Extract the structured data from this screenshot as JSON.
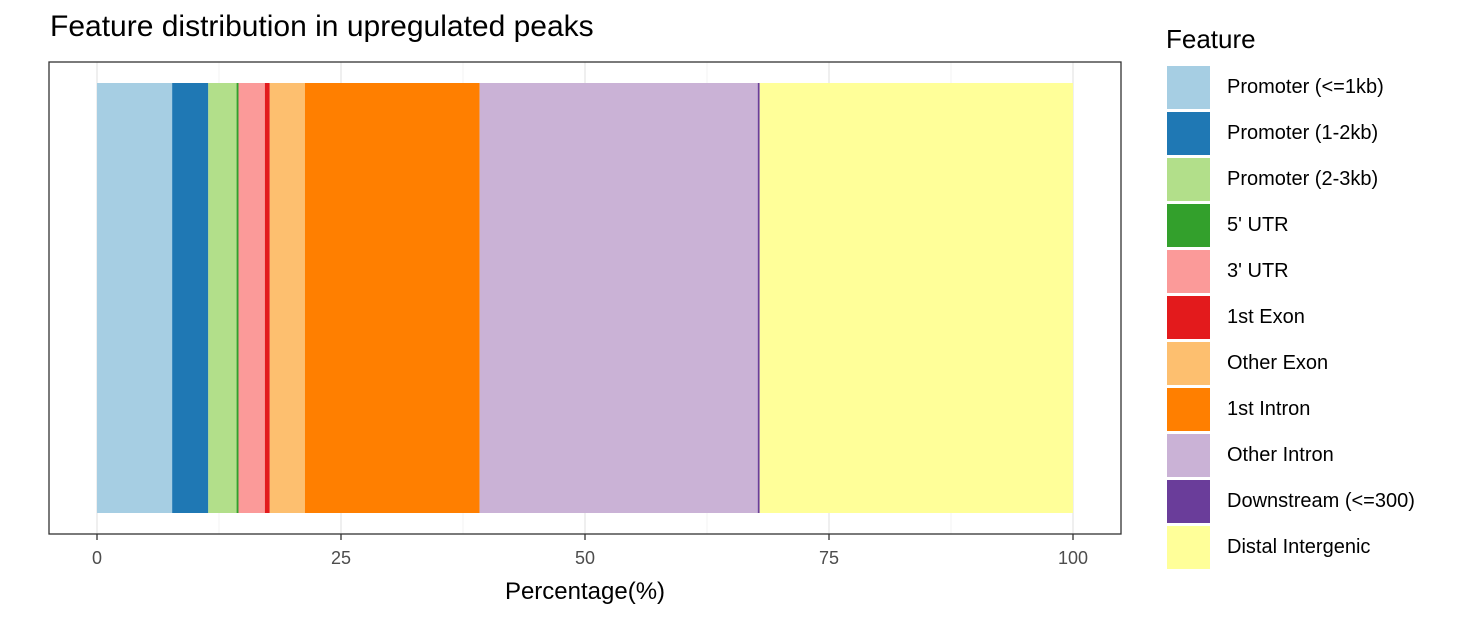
{
  "chart_data": {
    "type": "bar",
    "orientation": "horizontal",
    "stacked": true,
    "title": "Feature distribution in upregulated peaks",
    "xlabel": "Percentage(%)",
    "ylabel": "",
    "xlim": [
      0,
      100
    ],
    "x_ticks": [
      0,
      25,
      50,
      75,
      100
    ],
    "grid": true,
    "legend_title": "Feature",
    "legend_position": "right",
    "series": [
      {
        "name": "Promoter (<=1kb)",
        "value": 7.7,
        "color": "#A6CEE3"
      },
      {
        "name": "Promoter (1-2kb)",
        "value": 3.7,
        "color": "#1F78B4"
      },
      {
        "name": "Promoter (2-3kb)",
        "value": 2.9,
        "color": "#B2DF8A"
      },
      {
        "name": "5' UTR",
        "value": 0.2,
        "color": "#33A02C"
      },
      {
        "name": "3' UTR",
        "value": 2.7,
        "color": "#FB9A99"
      },
      {
        "name": "1st Exon",
        "value": 0.5,
        "color": "#E31A1C"
      },
      {
        "name": "Other Exon",
        "value": 3.6,
        "color": "#FDBF6F"
      },
      {
        "name": "1st Intron",
        "value": 17.9,
        "color": "#FF7F00"
      },
      {
        "name": "Other Intron",
        "value": 28.5,
        "color": "#CAB2D6"
      },
      {
        "name": "Downstream (<=300)",
        "value": 0.2,
        "color": "#6A3D9A"
      },
      {
        "name": "Distal Intergenic",
        "value": 32.1,
        "color": "#FFFF99"
      }
    ]
  }
}
